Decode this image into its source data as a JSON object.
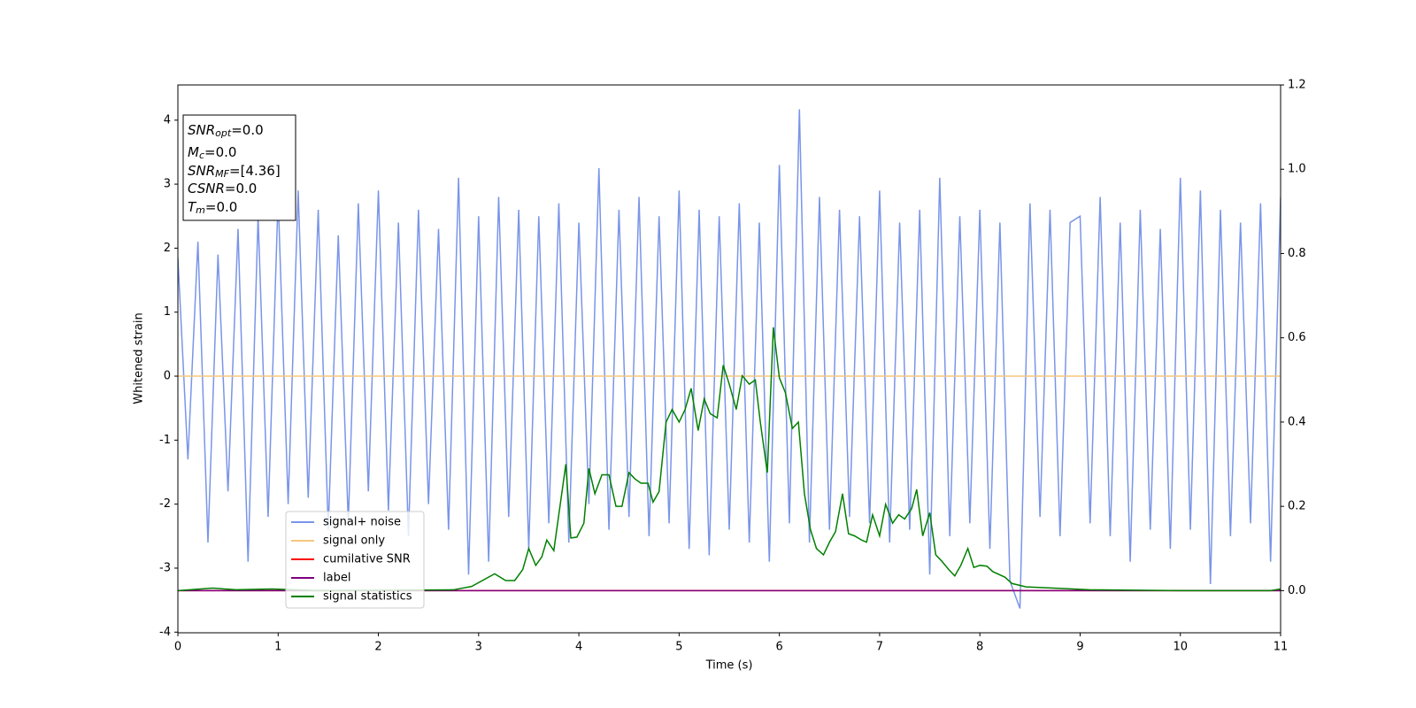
{
  "chart_data": {
    "type": "line",
    "xlabel": "Time (s)",
    "ylabel": "Whitened strain",
    "xlim": [
      0,
      11
    ],
    "xticks": [
      0,
      1,
      2,
      3,
      4,
      5,
      6,
      7,
      8,
      9,
      10,
      11
    ],
    "ylim": [
      -4.01,
      4.55
    ],
    "yticks": [
      -4,
      -3,
      -2,
      -1,
      0,
      1,
      2,
      3,
      4
    ],
    "y2lim": [
      -0.1,
      1.2
    ],
    "y2ticks": [
      {
        "value": 0,
        "label": "0.0"
      },
      {
        "value": 0.2,
        "label": "0.2"
      },
      {
        "value": 0.4,
        "label": "0.4"
      },
      {
        "value": 0.6,
        "label": "0.6"
      },
      {
        "value": 0.8,
        "label": "0.8"
      },
      {
        "value": 1.0,
        "label": "1.0"
      },
      {
        "value": 1.2,
        "label": "1.2"
      }
    ],
    "legend": "lower left",
    "annotations": [
      {
        "symbol": "SNR",
        "subscript": "opt",
        "text": "=0.0"
      },
      {
        "symbol": "M",
        "subscript": "c",
        "text": "=0.0"
      },
      {
        "symbol": "SNR",
        "subscript": "MF",
        "text": "=[4.36]"
      },
      {
        "symbol": "CSNR",
        "text": "=0.0"
      },
      {
        "symbol": "T",
        "subscript": "m",
        "text": "=0.0"
      }
    ],
    "series": [
      {
        "name": "signal+ noise",
        "color": "#7a95e8",
        "x": [
          0,
          0.1,
          0.2,
          0.3,
          0.4,
          0.5,
          0.6,
          0.7,
          0.8,
          0.9,
          1,
          1.1,
          1.2,
          1.3,
          1.4,
          1.5,
          1.6,
          1.7,
          1.8,
          1.9,
          2,
          2.1,
          2.2,
          2.3,
          2.4,
          2.5,
          2.6,
          2.7,
          2.8,
          2.9,
          3,
          3.1,
          3.2,
          3.3,
          3.4,
          3.5,
          3.6,
          3.7,
          3.8,
          3.9,
          4,
          4.1,
          4.2,
          4.3,
          4.4,
          4.5,
          4.6,
          4.7,
          4.8,
          4.9,
          5,
          5.1,
          5.2,
          5.3,
          5.4,
          5.5,
          5.6,
          5.7,
          5.8,
          5.9,
          6,
          6.1,
          6.2,
          6.3,
          6.4,
          6.5,
          6.6,
          6.7,
          6.8,
          6.9,
          7,
          7.1,
          7.2,
          7.3,
          7.4,
          7.5,
          7.6,
          7.7,
          7.8,
          7.9,
          8,
          8.1,
          8.2,
          8.3,
          8.4,
          8.5,
          8.6,
          8.7,
          8.8,
          8.9,
          9,
          9.1,
          9.2,
          9.3,
          9.4,
          9.5,
          9.6,
          9.7,
          9.8,
          9.9,
          10,
          10.1,
          10.2,
          10.3,
          10.4,
          10.5,
          10.6,
          10.7,
          10.8,
          10.9,
          11
        ],
        "values": [
          1.85,
          -1.3,
          2.1,
          -2.6,
          1.9,
          -1.8,
          2.3,
          -2.9,
          2.5,
          -2.2,
          2.8,
          -2.0,
          2.9,
          -1.9,
          2.6,
          -2.4,
          2.2,
          -2.3,
          2.7,
          -1.8,
          2.9,
          -2.1,
          2.4,
          -2.5,
          2.6,
          -2.0,
          2.3,
          -2.4,
          3.1,
          -3.1,
          2.5,
          -2.9,
          2.8,
          -2.2,
          2.6,
          -2.7,
          2.5,
          -2.3,
          2.7,
          -2.6,
          2.4,
          -2.0,
          3.25,
          -2.4,
          2.6,
          -2.2,
          2.8,
          -2.5,
          2.5,
          -2.3,
          2.9,
          -2.7,
          2.6,
          -2.8,
          2.5,
          -2.4,
          2.7,
          -2.6,
          2.4,
          -2.9,
          3.3,
          -2.3,
          4.17,
          -2.6,
          2.8,
          -2.4,
          2.6,
          -2.2,
          2.5,
          -2.3,
          2.9,
          -2.6,
          2.4,
          -2.4,
          2.6,
          -3.1,
          3.1,
          -2.5,
          2.5,
          -2.3,
          2.6,
          -2.7,
          2.4,
          -3.2,
          -3.63,
          2.7,
          -2.2,
          2.6,
          -2.5,
          2.4,
          2.5,
          -2.3,
          2.8,
          -2.5,
          2.4,
          -2.9,
          2.6,
          -2.4,
          2.3,
          -2.7,
          3.1,
          -2.4,
          2.9,
          -3.25,
          2.6,
          -2.5,
          2.4,
          -2.3,
          2.7,
          -2.9,
          2.8
        ]
      },
      {
        "name": "signal only",
        "color": "#f5c77e",
        "x": [
          0,
          11
        ],
        "values": [
          0,
          0
        ]
      },
      {
        "name": "cumilative SNR",
        "color": "#ff0000",
        "axis": "y2",
        "x": [
          0,
          11
        ],
        "values": [
          0,
          0
        ]
      },
      {
        "name": "label",
        "color": "#800080",
        "axis": "y2",
        "x": [
          0,
          11
        ],
        "values": [
          0,
          0
        ]
      },
      {
        "name": "signal statistics",
        "color": "#008000",
        "axis": "y2",
        "x": [
          0,
          0.35,
          0.58,
          0.94,
          1.4,
          2.75,
          2.93,
          3.16,
          3.27,
          3.36,
          3.44,
          3.5,
          3.57,
          3.63,
          3.68,
          3.75,
          3.87,
          3.92,
          3.98,
          4.05,
          4.1,
          4.16,
          4.23,
          4.3,
          4.37,
          4.43,
          4.5,
          4.56,
          4.62,
          4.69,
          4.74,
          4.8,
          4.87,
          4.93,
          5.0,
          5.06,
          5.12,
          5.19,
          5.25,
          5.31,
          5.38,
          5.44,
          5.5,
          5.57,
          5.63,
          5.7,
          5.76,
          5.81,
          5.88,
          5.94,
          6.0,
          6.06,
          6.13,
          6.19,
          6.25,
          6.31,
          6.37,
          6.44,
          6.5,
          6.56,
          6.63,
          6.69,
          6.75,
          6.82,
          6.87,
          6.93,
          7.0,
          7.06,
          7.13,
          7.19,
          7.25,
          7.32,
          7.37,
          7.43,
          7.5,
          7.56,
          7.62,
          7.69,
          7.75,
          7.81,
          7.88,
          7.94,
          8.0,
          8.07,
          8.13,
          8.25,
          8.32,
          8.46,
          8.73,
          9.09,
          10.0,
          10.9,
          11
        ],
        "values": [
          0,
          0.006,
          0.002,
          0.004,
          0,
          0.002,
          0.01,
          0.04,
          0.024,
          0.024,
          0.05,
          0.1,
          0.06,
          0.08,
          0.12,
          0.095,
          0.3,
          0.125,
          0.127,
          0.16,
          0.29,
          0.23,
          0.275,
          0.275,
          0.2,
          0.2,
          0.28,
          0.265,
          0.255,
          0.255,
          0.21,
          0.235,
          0.4,
          0.43,
          0.4,
          0.43,
          0.48,
          0.38,
          0.455,
          0.42,
          0.41,
          0.535,
          0.49,
          0.43,
          0.51,
          0.49,
          0.5,
          0.4,
          0.28,
          0.625,
          0.505,
          0.47,
          0.385,
          0.4,
          0.23,
          0.145,
          0.1,
          0.085,
          0.115,
          0.14,
          0.23,
          0.135,
          0.13,
          0.12,
          0.115,
          0.18,
          0.13,
          0.205,
          0.16,
          0.18,
          0.17,
          0.195,
          0.24,
          0.13,
          0.185,
          0.085,
          0.07,
          0.05,
          0.035,
          0.06,
          0.1,
          0.055,
          0.06,
          0.058,
          0.045,
          0.032,
          0.017,
          0.009,
          0.006,
          0.002,
          0,
          0,
          0.004
        ]
      }
    ]
  }
}
